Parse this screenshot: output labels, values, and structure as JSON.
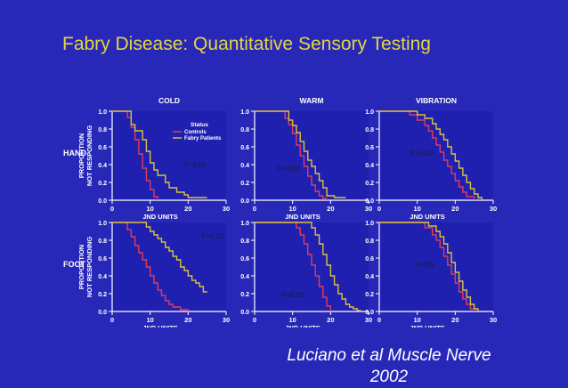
{
  "slide": {
    "title": "Fabry Disease: Quantitative Sensory Testing",
    "citation_line1": "Luciano et al Muscle Nerve",
    "citation_line2": "2002"
  },
  "colors": {
    "background": "#2828b8",
    "title": "#e3d442",
    "panel_background": "#1f1fb0",
    "axes": "#ffffff",
    "controls": "#e03c5a",
    "patients": "#d9c23a",
    "p_label": "#1a1a40"
  },
  "figure": {
    "row_labels": [
      "HAND",
      "FOOT"
    ],
    "ylabel_line1": "PROPORTION",
    "ylabel_line2": "NOT RESPONDING",
    "xlabel": "JND UNITS",
    "legend": {
      "title": "Status",
      "entries": [
        "Controls",
        "Fabry Patients"
      ]
    }
  },
  "chart_data": [
    {
      "type": "line",
      "step": true,
      "title": "COLD",
      "row": "HAND",
      "p_label": "P=0.00",
      "xlabel": "JND UNITS",
      "ylabel": "PROPORTION NOT RESPONDING",
      "xlim": [
        0,
        30
      ],
      "ylim": [
        0,
        1
      ],
      "xticks": [
        "0",
        "10",
        "20",
        "30"
      ],
      "yticks": [
        "0.0",
        "0.2",
        "0.4",
        "0.6",
        "0.8",
        "1.0"
      ],
      "series": [
        {
          "name": "Controls",
          "x": [
            0,
            3,
            4,
            5,
            6,
            7,
            8,
            9,
            10,
            11,
            12
          ],
          "y": [
            1.0,
            1.0,
            0.93,
            0.82,
            0.68,
            0.52,
            0.36,
            0.22,
            0.12,
            0.04,
            0.0
          ]
        },
        {
          "name": "Fabry Patients",
          "x": [
            0,
            4,
            5,
            6,
            8,
            9,
            10,
            11,
            12,
            14,
            15,
            17,
            19,
            20,
            22,
            24,
            25
          ],
          "y": [
            1.0,
            1.0,
            0.85,
            0.78,
            0.68,
            0.55,
            0.42,
            0.34,
            0.28,
            0.2,
            0.14,
            0.09,
            0.06,
            0.03,
            0.03,
            0.03,
            0.03
          ]
        }
      ]
    },
    {
      "type": "line",
      "step": true,
      "title": "WARM",
      "row": "HAND",
      "p_label": "P=0.00",
      "xlabel": "JND UNITS",
      "ylabel": "",
      "xlim": [
        0,
        30
      ],
      "ylim": [
        0,
        1
      ],
      "xticks": [
        "0",
        "10",
        "20",
        "30"
      ],
      "yticks": [
        "0.0",
        "0.2",
        "0.4",
        "0.6",
        "0.8",
        "1.0"
      ],
      "series": [
        {
          "name": "Controls",
          "x": [
            0,
            6,
            8,
            9,
            10,
            11,
            12,
            13,
            14,
            15,
            16,
            17,
            18,
            19
          ],
          "y": [
            1.0,
            1.0,
            0.92,
            0.85,
            0.75,
            0.62,
            0.5,
            0.38,
            0.27,
            0.17,
            0.1,
            0.05,
            0.02,
            0.0
          ]
        },
        {
          "name": "Fabry Patients",
          "x": [
            0,
            7,
            9,
            10,
            11,
            12,
            13,
            14,
            15,
            16,
            17,
            18,
            19,
            21,
            24
          ],
          "y": [
            1.0,
            1.0,
            0.9,
            0.84,
            0.76,
            0.66,
            0.55,
            0.45,
            0.38,
            0.3,
            0.22,
            0.14,
            0.05,
            0.03,
            0.03
          ]
        }
      ]
    },
    {
      "type": "line",
      "step": true,
      "title": "VIBRATION",
      "row": "HAND",
      "p_label": "P=0.02",
      "xlabel": "JND UNITS",
      "ylabel": "",
      "xlim": [
        0,
        30
      ],
      "ylim": [
        0,
        1
      ],
      "xticks": [
        "0",
        "10",
        "20",
        "30"
      ],
      "yticks": [
        "0.0",
        "0.2",
        "0.4",
        "0.6",
        "0.8",
        "1.0"
      ],
      "series": [
        {
          "name": "Controls",
          "x": [
            0,
            6,
            8,
            10,
            12,
            13,
            14,
            15,
            16,
            17,
            18,
            19,
            20,
            21,
            22,
            23,
            25
          ],
          "y": [
            1.0,
            1.0,
            0.96,
            0.9,
            0.84,
            0.78,
            0.7,
            0.62,
            0.54,
            0.45,
            0.38,
            0.3,
            0.22,
            0.15,
            0.09,
            0.04,
            0.0
          ]
        },
        {
          "name": "Fabry Patients",
          "x": [
            0,
            8,
            10,
            12,
            14,
            15,
            16,
            17,
            18,
            19,
            20,
            21,
            22,
            23,
            24,
            25,
            26,
            27
          ],
          "y": [
            1.0,
            1.0,
            0.96,
            0.92,
            0.86,
            0.8,
            0.74,
            0.68,
            0.6,
            0.52,
            0.44,
            0.36,
            0.28,
            0.2,
            0.13,
            0.07,
            0.03,
            0.0
          ]
        }
      ]
    },
    {
      "type": "line",
      "step": true,
      "title": "",
      "row": "FOOT",
      "p_label": "P=0.00",
      "xlabel": "JND UNITS",
      "ylabel": "PROPORTION NOT RESPONDING",
      "xlim": [
        0,
        30
      ],
      "ylim": [
        0,
        1
      ],
      "xticks": [
        "0",
        "10",
        "20",
        "30"
      ],
      "yticks": [
        "0.0",
        "0.2",
        "0.4",
        "0.6",
        "0.8",
        "1.0"
      ],
      "series": [
        {
          "name": "Controls",
          "x": [
            0,
            3,
            4,
            5,
            6,
            7,
            8,
            9,
            10,
            11,
            12,
            13,
            14,
            15,
            16,
            18,
            20
          ],
          "y": [
            1.0,
            1.0,
            0.92,
            0.84,
            0.74,
            0.66,
            0.58,
            0.5,
            0.4,
            0.32,
            0.24,
            0.18,
            0.12,
            0.08,
            0.05,
            0.02,
            0.0
          ]
        },
        {
          "name": "Fabry Patients",
          "x": [
            0,
            7,
            9,
            10,
            11,
            12,
            13,
            14,
            15,
            16,
            17,
            18,
            19,
            20,
            21,
            22,
            23,
            24,
            25
          ],
          "y": [
            1.0,
            1.0,
            0.95,
            0.9,
            0.86,
            0.82,
            0.78,
            0.72,
            0.68,
            0.62,
            0.58,
            0.5,
            0.46,
            0.4,
            0.35,
            0.32,
            0.28,
            0.22,
            0.22
          ]
        }
      ]
    },
    {
      "type": "line",
      "step": true,
      "title": "",
      "row": "FOOT",
      "p_label": "P=0.00",
      "xlabel": "JND UNITS",
      "ylabel": "",
      "xlim": [
        0,
        30
      ],
      "ylim": [
        0,
        1
      ],
      "xticks": [
        "0",
        "10",
        "20",
        "30"
      ],
      "yticks": [
        "0.0",
        "0.2",
        "0.4",
        "0.6",
        "0.8",
        "1.0"
      ],
      "series": [
        {
          "name": "Controls",
          "x": [
            0,
            9,
            11,
            12,
            13,
            14,
            15,
            16,
            17,
            18,
            19,
            20
          ],
          "y": [
            1.0,
            1.0,
            0.94,
            0.86,
            0.76,
            0.64,
            0.52,
            0.4,
            0.28,
            0.16,
            0.06,
            0.0
          ]
        },
        {
          "name": "Fabry Patients",
          "x": [
            0,
            14,
            15,
            16,
            17,
            18,
            19,
            20,
            21,
            22,
            23,
            24,
            25,
            26,
            27,
            28
          ],
          "y": [
            1.0,
            1.0,
            0.94,
            0.86,
            0.76,
            0.64,
            0.52,
            0.4,
            0.3,
            0.2,
            0.14,
            0.08,
            0.05,
            0.03,
            0.01,
            0.01
          ]
        }
      ]
    },
    {
      "type": "line",
      "step": true,
      "title": "",
      "row": "FOOT",
      "p_label": "P=NS",
      "xlabel": "JND UNITS",
      "ylabel": "",
      "xlim": [
        0,
        30
      ],
      "ylim": [
        0,
        1
      ],
      "xticks": [
        "0",
        "10",
        "20",
        "30"
      ],
      "yticks": [
        "0.0",
        "0.2",
        "0.4",
        "0.6",
        "0.8",
        "1.0"
      ],
      "series": [
        {
          "name": "Controls",
          "x": [
            0,
            10,
            12,
            14,
            15,
            16,
            17,
            18,
            19,
            20,
            21,
            22,
            23,
            24,
            25
          ],
          "y": [
            1.0,
            1.0,
            0.94,
            0.86,
            0.8,
            0.72,
            0.62,
            0.52,
            0.42,
            0.32,
            0.22,
            0.14,
            0.08,
            0.03,
            0.0
          ]
        },
        {
          "name": "Fabry Patients",
          "x": [
            0,
            11,
            13,
            15,
            16,
            17,
            18,
            19,
            20,
            21,
            22,
            23,
            24,
            25,
            26
          ],
          "y": [
            1.0,
            1.0,
            0.96,
            0.9,
            0.84,
            0.76,
            0.66,
            0.55,
            0.44,
            0.34,
            0.24,
            0.16,
            0.08,
            0.03,
            0.0
          ]
        }
      ]
    }
  ]
}
